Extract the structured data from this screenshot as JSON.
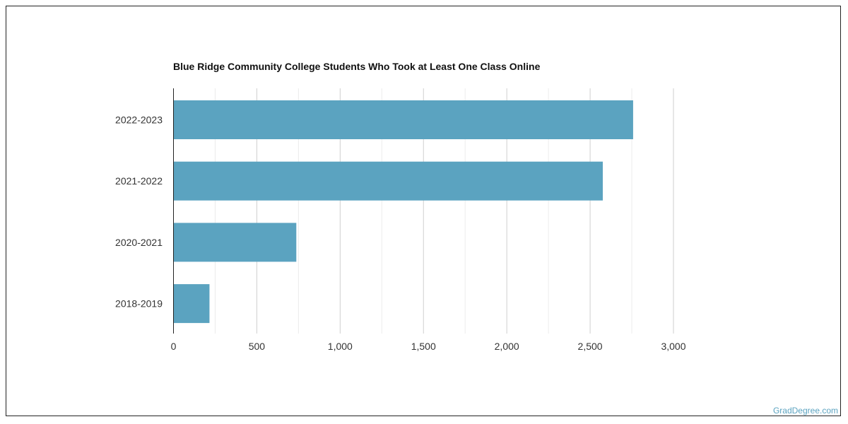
{
  "chart_data": {
    "type": "bar",
    "orientation": "horizontal",
    "title": "Blue Ridge Community College Students Who Took at Least One Class Online",
    "categories": [
      "2022-2023",
      "2021-2022",
      "2020-2021",
      "2018-2019"
    ],
    "values": [
      2758,
      2576,
      737,
      216
    ],
    "xlim": [
      0,
      3000
    ],
    "xticks": [
      0,
      500,
      1000,
      1500,
      2000,
      2500,
      3000
    ],
    "xtick_labels": [
      "0",
      "500",
      "1,000",
      "1,500",
      "2,000",
      "2,500",
      "3,000"
    ],
    "xlabel": "",
    "ylabel": "",
    "grid": true,
    "bar_color": "#5ba3c0"
  },
  "credit": "GradDegree.com"
}
